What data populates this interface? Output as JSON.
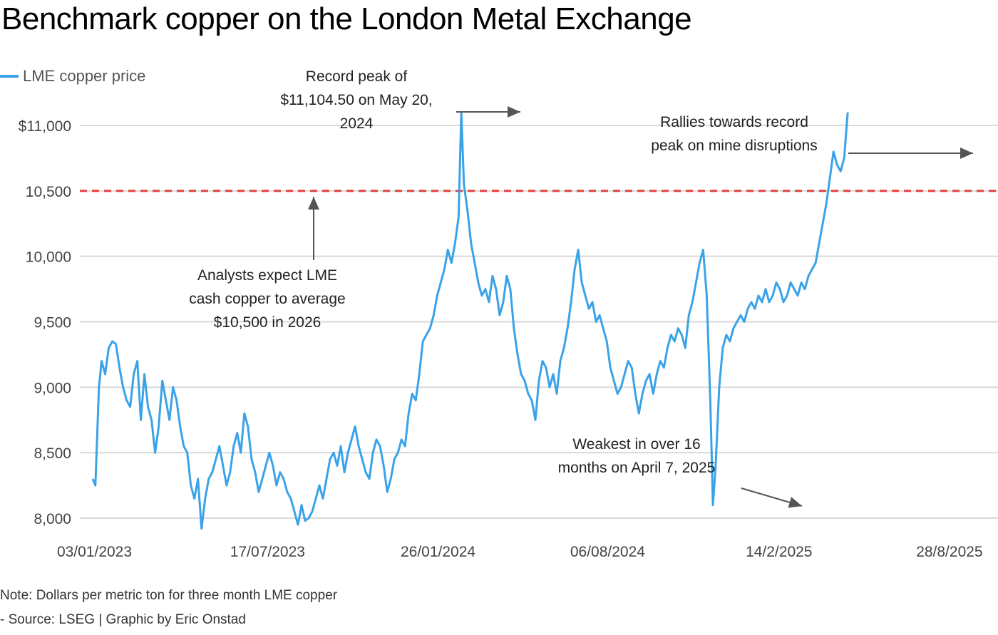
{
  "title": "Benchmark copper on the London Metal Exchange",
  "legend": {
    "label": "LME copper price",
    "color": "#3aa3e8"
  },
  "footer": {
    "note": "Note: Dollars per metric ton for three month LME copper",
    "source": "- Source: LSEG | Graphic by Eric Onstad"
  },
  "colors": {
    "line": "#3aa3e8",
    "reference": "#e0403a",
    "grid": "#d9d9d9",
    "annotation_arrow": "#555555"
  },
  "chart_data": {
    "type": "line",
    "title": "Benchmark copper on the London Metal Exchange",
    "xlabel": "",
    "ylabel": "",
    "ylim": [
      7900,
      11150
    ],
    "xlim": [
      0,
      1000
    ],
    "grid": true,
    "legend_placement": "top-left",
    "y_ticks": [
      8000,
      8500,
      9000,
      9500,
      10000,
      10500,
      11000
    ],
    "y_tick_labels": [
      "8,000",
      "8,500",
      "9,000",
      "9,500",
      "10,000",
      "10,500",
      "$11,000"
    ],
    "x_ticks": [
      {
        "x": 2,
        "label": "03/01/2023"
      },
      {
        "x": 196,
        "label": "17/07/2023"
      },
      {
        "x": 387,
        "label": "26/01/2024"
      },
      {
        "x": 577,
        "label": "06/08/2024"
      },
      {
        "x": 769,
        "label": "14/2/2025"
      },
      {
        "x": 960,
        "label": "28/8/2025"
      }
    ],
    "reference_line": {
      "value": 10500,
      "style": "dashed"
    },
    "series": [
      {
        "name": "LME copper price",
        "points": [
          [
            0,
            8300
          ],
          [
            3,
            8250
          ],
          [
            7,
            9000
          ],
          [
            10,
            9200
          ],
          [
            14,
            9100
          ],
          [
            18,
            9300
          ],
          [
            22,
            9350
          ],
          [
            26,
            9330
          ],
          [
            30,
            9150
          ],
          [
            34,
            9000
          ],
          [
            38,
            8900
          ],
          [
            42,
            8850
          ],
          [
            46,
            9100
          ],
          [
            50,
            9200
          ],
          [
            54,
            8750
          ],
          [
            58,
            9100
          ],
          [
            62,
            8850
          ],
          [
            66,
            8750
          ],
          [
            70,
            8500
          ],
          [
            74,
            8700
          ],
          [
            78,
            9050
          ],
          [
            82,
            8900
          ],
          [
            86,
            8750
          ],
          [
            90,
            9000
          ],
          [
            94,
            8900
          ],
          [
            98,
            8700
          ],
          [
            102,
            8550
          ],
          [
            106,
            8500
          ],
          [
            110,
            8250
          ],
          [
            114,
            8150
          ],
          [
            118,
            8300
          ],
          [
            122,
            7920
          ],
          [
            126,
            8150
          ],
          [
            130,
            8300
          ],
          [
            134,
            8350
          ],
          [
            138,
            8450
          ],
          [
            142,
            8550
          ],
          [
            146,
            8400
          ],
          [
            150,
            8250
          ],
          [
            154,
            8350
          ],
          [
            158,
            8550
          ],
          [
            162,
            8650
          ],
          [
            166,
            8500
          ],
          [
            170,
            8800
          ],
          [
            174,
            8700
          ],
          [
            178,
            8450
          ],
          [
            182,
            8350
          ],
          [
            186,
            8200
          ],
          [
            190,
            8300
          ],
          [
            194,
            8400
          ],
          [
            198,
            8500
          ],
          [
            202,
            8400
          ],
          [
            206,
            8250
          ],
          [
            210,
            8350
          ],
          [
            214,
            8300
          ],
          [
            218,
            8200
          ],
          [
            222,
            8150
          ],
          [
            226,
            8050
          ],
          [
            230,
            7950
          ],
          [
            234,
            8100
          ],
          [
            238,
            7980
          ],
          [
            242,
            8000
          ],
          [
            246,
            8050
          ],
          [
            250,
            8150
          ],
          [
            254,
            8250
          ],
          [
            258,
            8150
          ],
          [
            262,
            8300
          ],
          [
            266,
            8450
          ],
          [
            270,
            8500
          ],
          [
            274,
            8400
          ],
          [
            278,
            8550
          ],
          [
            282,
            8350
          ],
          [
            286,
            8500
          ],
          [
            290,
            8600
          ],
          [
            294,
            8700
          ],
          [
            298,
            8550
          ],
          [
            302,
            8450
          ],
          [
            306,
            8350
          ],
          [
            310,
            8300
          ],
          [
            314,
            8500
          ],
          [
            318,
            8600
          ],
          [
            322,
            8550
          ],
          [
            326,
            8400
          ],
          [
            330,
            8200
          ],
          [
            334,
            8300
          ],
          [
            338,
            8450
          ],
          [
            342,
            8500
          ],
          [
            346,
            8600
          ],
          [
            350,
            8550
          ],
          [
            354,
            8800
          ],
          [
            358,
            8950
          ],
          [
            362,
            8900
          ],
          [
            366,
            9100
          ],
          [
            370,
            9350
          ],
          [
            374,
            9400
          ],
          [
            378,
            9450
          ],
          [
            382,
            9550
          ],
          [
            386,
            9700
          ],
          [
            390,
            9800
          ],
          [
            394,
            9900
          ],
          [
            398,
            10050
          ],
          [
            402,
            9950
          ],
          [
            406,
            10100
          ],
          [
            410,
            10300
          ],
          [
            413,
            11100
          ],
          [
            416,
            10550
          ],
          [
            420,
            10350
          ],
          [
            424,
            10100
          ],
          [
            428,
            9950
          ],
          [
            432,
            9800
          ],
          [
            436,
            9700
          ],
          [
            440,
            9750
          ],
          [
            444,
            9650
          ],
          [
            448,
            9850
          ],
          [
            452,
            9750
          ],
          [
            456,
            9550
          ],
          [
            460,
            9650
          ],
          [
            464,
            9850
          ],
          [
            468,
            9750
          ],
          [
            472,
            9450
          ],
          [
            476,
            9250
          ],
          [
            480,
            9100
          ],
          [
            484,
            9050
          ],
          [
            488,
            8950
          ],
          [
            492,
            8900
          ],
          [
            496,
            8750
          ],
          [
            500,
            9050
          ],
          [
            504,
            9200
          ],
          [
            508,
            9150
          ],
          [
            512,
            9000
          ],
          [
            516,
            9100
          ],
          [
            520,
            8950
          ],
          [
            524,
            9200
          ],
          [
            528,
            9300
          ],
          [
            532,
            9450
          ],
          [
            536,
            9650
          ],
          [
            540,
            9900
          ],
          [
            544,
            10050
          ],
          [
            548,
            9800
          ],
          [
            552,
            9700
          ],
          [
            556,
            9600
          ],
          [
            560,
            9650
          ],
          [
            564,
            9500
          ],
          [
            568,
            9550
          ],
          [
            572,
            9450
          ],
          [
            576,
            9350
          ],
          [
            580,
            9150
          ],
          [
            584,
            9050
          ],
          [
            588,
            8950
          ],
          [
            592,
            9000
          ],
          [
            596,
            9100
          ],
          [
            600,
            9200
          ],
          [
            604,
            9150
          ],
          [
            608,
            8950
          ],
          [
            612,
            8800
          ],
          [
            616,
            8950
          ],
          [
            620,
            9050
          ],
          [
            624,
            9100
          ],
          [
            628,
            8950
          ],
          [
            632,
            9100
          ],
          [
            636,
            9200
          ],
          [
            640,
            9150
          ],
          [
            644,
            9300
          ],
          [
            648,
            9400
          ],
          [
            652,
            9350
          ],
          [
            656,
            9450
          ],
          [
            660,
            9400
          ],
          [
            664,
            9300
          ],
          [
            668,
            9550
          ],
          [
            672,
            9650
          ],
          [
            676,
            9800
          ],
          [
            680,
            9950
          ],
          [
            684,
            10050
          ],
          [
            688,
            9700
          ],
          [
            692,
            8900
          ],
          [
            695,
            8100
          ],
          [
            698,
            8400
          ],
          [
            702,
            9000
          ],
          [
            706,
            9300
          ],
          [
            710,
            9400
          ],
          [
            714,
            9350
          ],
          [
            718,
            9450
          ],
          [
            722,
            9500
          ],
          [
            726,
            9550
          ],
          [
            730,
            9500
          ],
          [
            734,
            9600
          ],
          [
            738,
            9650
          ],
          [
            742,
            9600
          ],
          [
            746,
            9700
          ],
          [
            750,
            9650
          ],
          [
            754,
            9750
          ],
          [
            758,
            9650
          ],
          [
            762,
            9700
          ],
          [
            766,
            9800
          ],
          [
            770,
            9750
          ],
          [
            774,
            9650
          ],
          [
            778,
            9700
          ],
          [
            782,
            9800
          ],
          [
            786,
            9750
          ],
          [
            790,
            9700
          ],
          [
            794,
            9800
          ],
          [
            798,
            9750
          ],
          [
            802,
            9850
          ],
          [
            806,
            9900
          ],
          [
            810,
            9950
          ],
          [
            814,
            10100
          ],
          [
            818,
            10250
          ],
          [
            822,
            10400
          ],
          [
            826,
            10600
          ],
          [
            830,
            10800
          ],
          [
            834,
            10700
          ],
          [
            838,
            10650
          ],
          [
            842,
            10750
          ],
          [
            846,
            11100
          ]
        ]
      }
    ],
    "annotations": [
      {
        "id": "record",
        "lines": [
          "Record peak of",
          "$11,104.50 on May 20,",
          "2024"
        ],
        "points_to": [
          413,
          11104.5
        ]
      },
      {
        "id": "rallies",
        "lines": [
          "Rallies towards record",
          "peak on mine disruptions"
        ],
        "points_to": [
          840,
          10750
        ]
      },
      {
        "id": "analysts",
        "lines": [
          "Analysts expect LME",
          "cash copper to average",
          "$10,500 in 2026"
        ],
        "points_to": [
          243,
          10500
        ]
      },
      {
        "id": "weakest",
        "lines": [
          "Weakest in over 16",
          "months on April 7, 2025"
        ],
        "points_to": [
          695,
          8100
        ]
      }
    ]
  }
}
